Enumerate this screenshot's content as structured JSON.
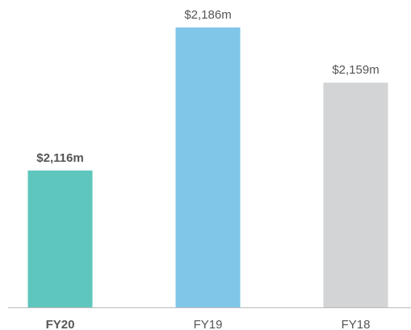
{
  "chart_data": {
    "type": "bar",
    "categories": [
      "FY20",
      "FY19",
      "FY18"
    ],
    "values": [
      2116,
      2186,
      2159
    ],
    "value_labels": [
      "$2,116m",
      "$2,186m",
      "$2,159m"
    ],
    "colors": [
      "#5ec6bd",
      "#7fc6e8",
      "#d3d4d6"
    ],
    "highlight": 0,
    "ylim": [
      2049,
      2186
    ]
  }
}
